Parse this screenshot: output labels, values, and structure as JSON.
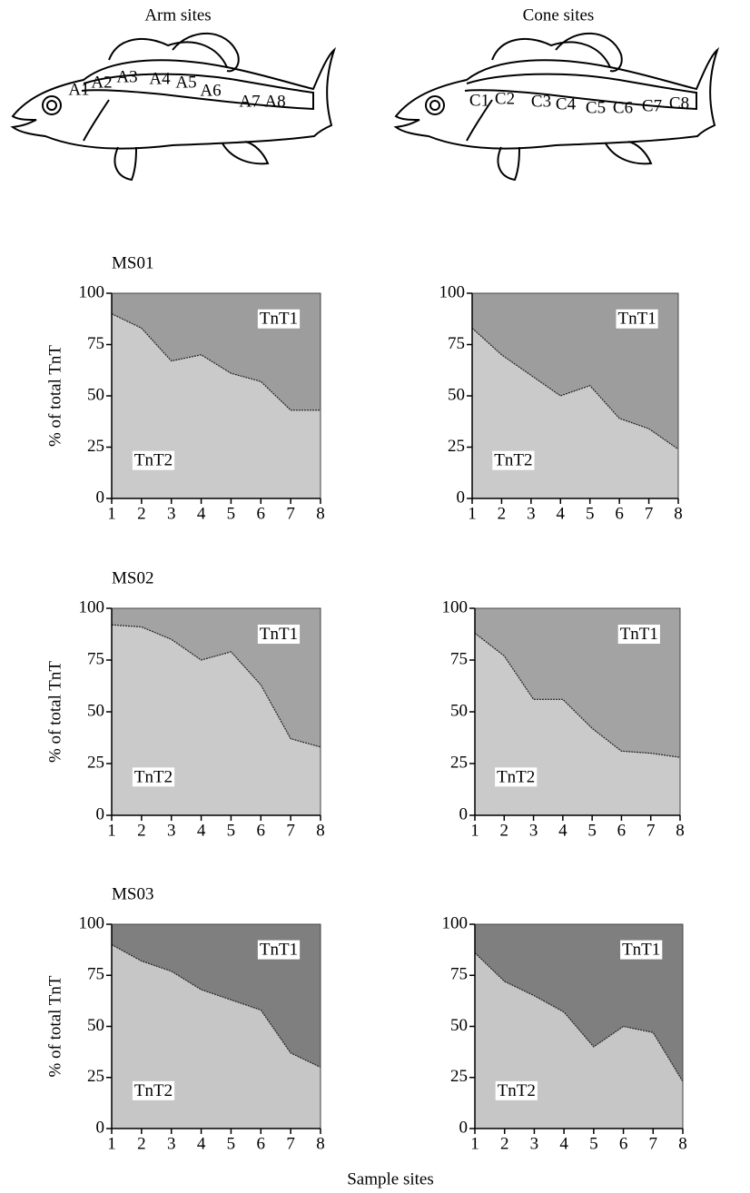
{
  "figure": {
    "arm_title": "Arm sites",
    "cone_title": "Cone sites",
    "arm_labels": [
      "A1",
      "A2",
      "A3",
      "A4",
      "A5",
      "A6",
      "A7",
      "A8"
    ],
    "cone_labels": [
      "C1",
      "C2",
      "C3",
      "C4",
      "C5",
      "C6",
      "C7",
      "C8"
    ],
    "xlabel": "Sample sites"
  },
  "chart_data": [
    {
      "type": "area",
      "title": "MS01",
      "ylabel": "% of total TnT",
      "x": [
        1,
        2,
        3,
        4,
        5,
        6,
        7,
        8
      ],
      "xlim": [
        1,
        8
      ],
      "ylim": [
        0,
        100
      ],
      "xticks": [
        1,
        2,
        3,
        4,
        5,
        6,
        7,
        8
      ],
      "yticks": [
        0,
        25,
        50,
        75,
        100
      ],
      "series": [
        {
          "name": "TnT2",
          "color": "#cacaca",
          "values": [
            90,
            83,
            67,
            70,
            61,
            57,
            43,
            43
          ]
        },
        {
          "name": "TnT1",
          "color": "#9d9d9d",
          "values": [
            10,
            17,
            33,
            30,
            39,
            43,
            57,
            57
          ]
        }
      ]
    },
    {
      "type": "area",
      "x": [
        1,
        2,
        3,
        4,
        5,
        6,
        7,
        8
      ],
      "xlim": [
        1,
        8
      ],
      "ylim": [
        0,
        100
      ],
      "xticks": [
        1,
        2,
        3,
        4,
        5,
        6,
        7,
        8
      ],
      "yticks": [
        0,
        25,
        50,
        75,
        100
      ],
      "series": [
        {
          "name": "TnT2",
          "color": "#cacaca",
          "values": [
            83,
            70,
            60,
            50,
            55,
            39,
            34,
            24
          ]
        },
        {
          "name": "TnT1",
          "color": "#9d9d9d",
          "values": [
            17,
            30,
            40,
            50,
            45,
            61,
            66,
            76
          ]
        }
      ]
    },
    {
      "type": "area",
      "title": "MS02",
      "ylabel": "% of total TnT",
      "x": [
        1,
        2,
        3,
        4,
        5,
        6,
        7,
        8
      ],
      "xlim": [
        1,
        8
      ],
      "ylim": [
        0,
        100
      ],
      "xticks": [
        1,
        2,
        3,
        4,
        5,
        6,
        7,
        8
      ],
      "yticks": [
        0,
        25,
        50,
        75,
        100
      ],
      "series": [
        {
          "name": "TnT2",
          "color": "#cacaca",
          "values": [
            92,
            91,
            85,
            75,
            79,
            63,
            37,
            33
          ]
        },
        {
          "name": "TnT1",
          "color": "#a3a3a3",
          "values": [
            8,
            9,
            15,
            25,
            21,
            37,
            63,
            67
          ]
        }
      ]
    },
    {
      "type": "area",
      "x": [
        1,
        2,
        3,
        4,
        5,
        6,
        7,
        8
      ],
      "xlim": [
        1,
        8
      ],
      "ylim": [
        0,
        100
      ],
      "xticks": [
        1,
        2,
        3,
        4,
        5,
        6,
        7,
        8
      ],
      "yticks": [
        0,
        25,
        50,
        75,
        100
      ],
      "series": [
        {
          "name": "TnT2",
          "color": "#cacaca",
          "values": [
            88,
            77,
            56,
            56,
            42,
            31,
            30,
            28
          ]
        },
        {
          "name": "TnT1",
          "color": "#a3a3a3",
          "values": [
            12,
            23,
            44,
            44,
            58,
            69,
            70,
            72
          ]
        }
      ]
    },
    {
      "type": "area",
      "title": "MS03",
      "ylabel": "% of total TnT",
      "x": [
        1,
        2,
        3,
        4,
        5,
        6,
        7,
        8
      ],
      "xlim": [
        1,
        8
      ],
      "ylim": [
        0,
        100
      ],
      "xticks": [
        1,
        2,
        3,
        4,
        5,
        6,
        7,
        8
      ],
      "yticks": [
        0,
        25,
        50,
        75,
        100
      ],
      "series": [
        {
          "name": "TnT2",
          "color": "#c6c6c6",
          "values": [
            90,
            82,
            77,
            68,
            63,
            58,
            37,
            30
          ]
        },
        {
          "name": "TnT1",
          "color": "#7f7f7f",
          "values": [
            10,
            18,
            23,
            32,
            37,
            42,
            63,
            70
          ]
        }
      ]
    },
    {
      "type": "area",
      "x": [
        1,
        2,
        3,
        4,
        5,
        6,
        7,
        8
      ],
      "xlim": [
        1,
        8
      ],
      "ylim": [
        0,
        100
      ],
      "xticks": [
        1,
        2,
        3,
        4,
        5,
        6,
        7,
        8
      ],
      "yticks": [
        0,
        25,
        50,
        75,
        100
      ],
      "series": [
        {
          "name": "TnT2",
          "color": "#c6c6c6",
          "values": [
            86,
            72,
            65,
            57,
            40,
            50,
            47,
            23
          ]
        },
        {
          "name": "TnT1",
          "color": "#7f7f7f",
          "values": [
            14,
            28,
            35,
            43,
            60,
            50,
            53,
            77
          ]
        }
      ]
    }
  ]
}
